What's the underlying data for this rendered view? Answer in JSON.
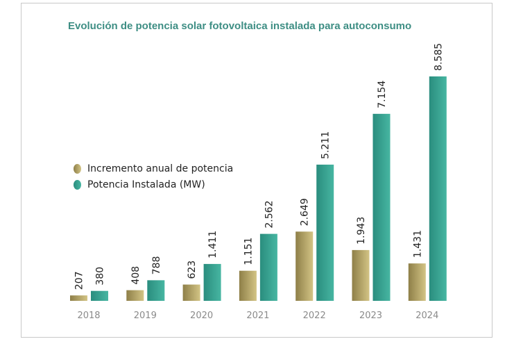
{
  "chart_data": {
    "type": "bar",
    "title": "Evolución de potencia solar fotovoltaica instalada para autoconsumo",
    "categories": [
      "2018",
      "2019",
      "2020",
      "2021",
      "2022",
      "2023",
      "2024"
    ],
    "series": [
      {
        "name": "Incremento anual de potencia",
        "values": [
          207,
          408,
          623,
          1151,
          2649,
          1943,
          1431
        ],
        "labels": [
          "207",
          "408",
          "623",
          "1.151",
          "2.649",
          "1.943",
          "1.431"
        ],
        "color": "#b5a363"
      },
      {
        "name": "Potencia Instalada (MW)",
        "values": [
          380,
          788,
          1411,
          2562,
          5211,
          7154,
          8585
        ],
        "labels": [
          "380",
          "788",
          "1.411",
          "2.562",
          "5.211",
          "7.154",
          "8.585"
        ],
        "color": "#36a393"
      }
    ],
    "ylim": [
      0,
      8585
    ],
    "grid": false,
    "legend": "left",
    "xlabel": "",
    "ylabel": ""
  }
}
